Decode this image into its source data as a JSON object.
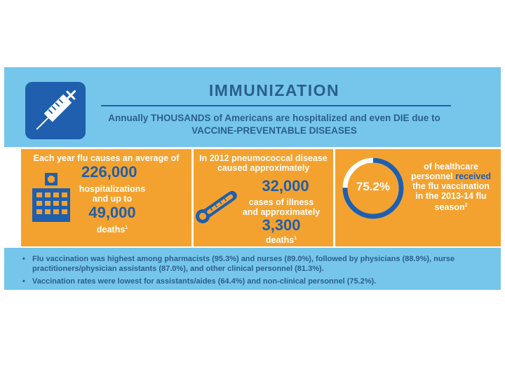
{
  "header": {
    "title": "IMMUNIZATION",
    "subtitle_line1": "Annually THOUSANDS of Americans are hospitalized and even DIE due to",
    "subtitle_line2": "VACCINE-PREVENTABLE DISEASES",
    "icon": "syringe-icon"
  },
  "flu_panel": {
    "intro": "Each year flu causes an average of",
    "hospitalizations_value": "226,000",
    "hospitalizations_label_line1": "hospitalizations",
    "hospitalizations_label_line2": "and up to",
    "deaths_value": "49,000",
    "deaths_label": "deaths",
    "deaths_footnote": "1",
    "icon": "hospital-icon"
  },
  "pneumococcal_panel": {
    "intro_line1": "In 2012 pneumococcal disease",
    "intro_line2": "caused approximately",
    "illness_value": "32,000",
    "illness_label_line1": "cases of illness",
    "illness_label_line2": "and approximately",
    "deaths_value": "3,300",
    "deaths_label": "deaths",
    "deaths_footnote": "1",
    "icon": "thermometer-icon"
  },
  "vaccination_panel": {
    "percent_label": "75.2%",
    "percent_value": 75.2,
    "text_line1": "of healthcare",
    "text_line2_a": "personnel ",
    "text_line2_b": "received",
    "text_line3": "the flu vaccination",
    "text_line4": "in the 2013-14 flu",
    "text_line5": "season",
    "footnote": "2"
  },
  "footer": {
    "bullet1_line1": "Flu vaccination was highest among pharmacists (95.3%) and nurses (89.0%), followed by physicians (88.9%), nurse",
    "bullet1_line2": "practitioners/physician assistants (87.0%), and other clinical personnel (81.3%).",
    "bullet2": "Vaccination rates were lowest for assistants/aides (64.4%) and non-clinical personnel (75.2%)."
  },
  "colors": {
    "header_bg": "#75c6ea",
    "panel_bg": "#f4a22f",
    "accent_blue": "#1f5fae",
    "text_blue": "#2b5f8e"
  }
}
